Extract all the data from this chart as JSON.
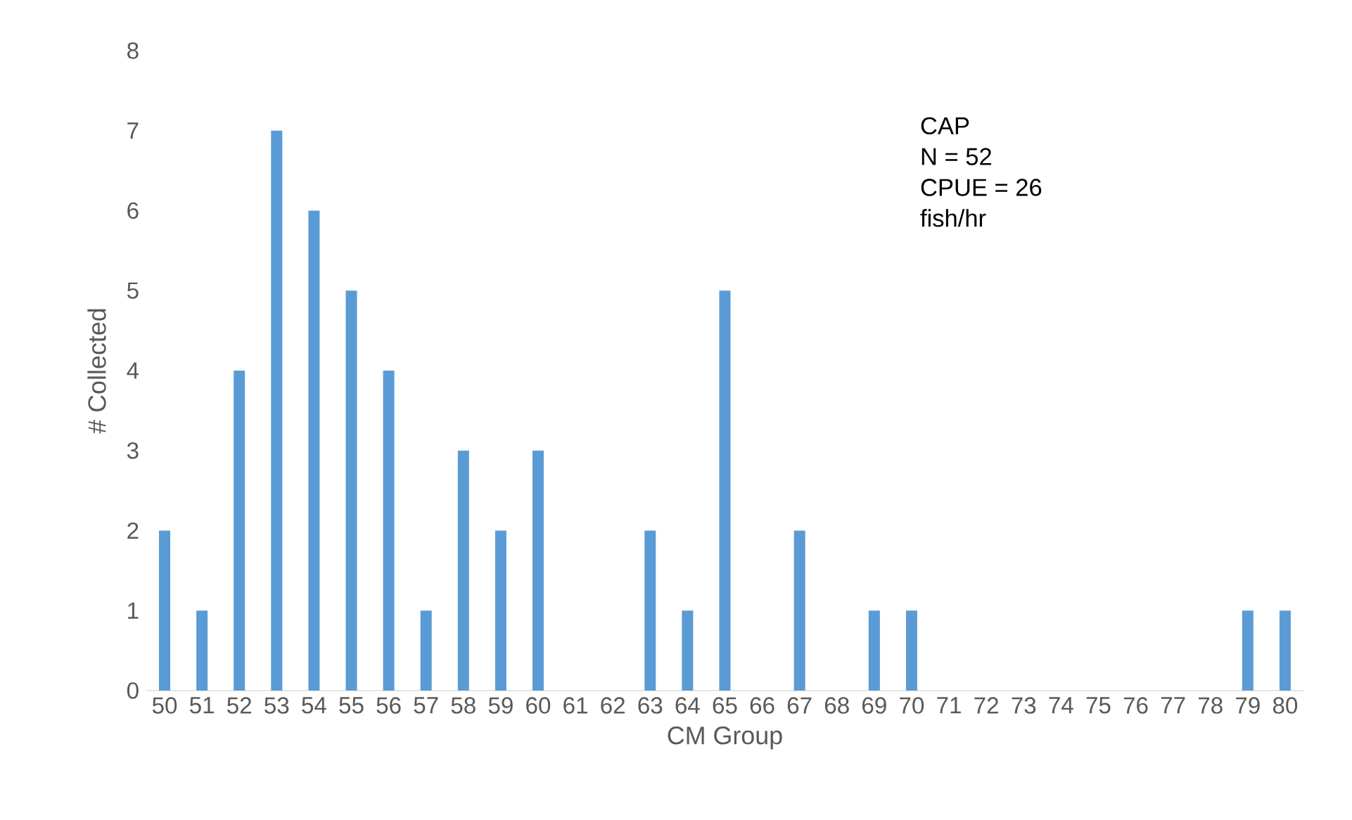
{
  "chart_data": {
    "type": "bar",
    "xlabel": "CM Group",
    "ylabel": "# Collected",
    "categories": [
      "50",
      "51",
      "52",
      "53",
      "54",
      "55",
      "56",
      "57",
      "58",
      "59",
      "60",
      "61",
      "62",
      "63",
      "64",
      "65",
      "66",
      "67",
      "68",
      "69",
      "70",
      "71",
      "72",
      "73",
      "74",
      "75",
      "76",
      "77",
      "78",
      "79",
      "80"
    ],
    "values": [
      2,
      1,
      4,
      7,
      6,
      5,
      4,
      1,
      3,
      2,
      3,
      0,
      0,
      2,
      1,
      5,
      0,
      2,
      0,
      1,
      1,
      0,
      0,
      0,
      0,
      0,
      0,
      0,
      0,
      1,
      1
    ],
    "color": "#5b9bd5",
    "ylim": [
      0,
      8
    ],
    "yticks": [
      0,
      1,
      2,
      3,
      4,
      5,
      6,
      7,
      8
    ],
    "annotations": [
      "CAP",
      "N = 52",
      "CPUE = 26",
      "fish/hr"
    ]
  }
}
